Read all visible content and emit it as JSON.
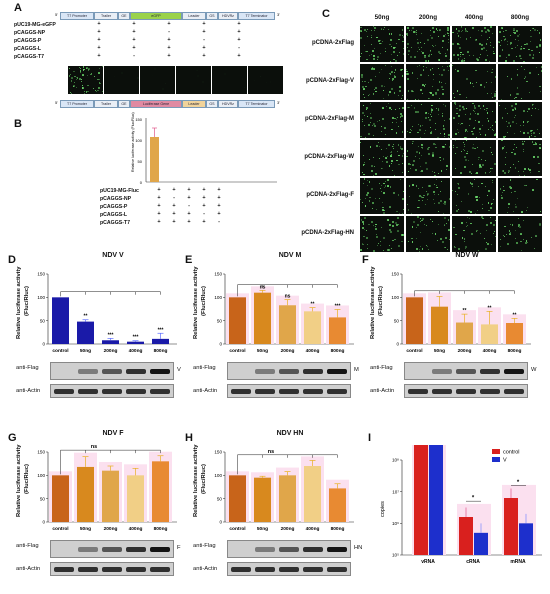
{
  "panels": {
    "A": "A",
    "B": "B",
    "C": "C",
    "D": "D",
    "E": "E",
    "F": "F",
    "G": "G",
    "H": "H",
    "I": "I"
  },
  "panelA": {
    "rows": [
      "pUC19-MG-eGFP",
      "pCAGGS-NP",
      "pCAGGS-P",
      "pCAGGS-L",
      "pCAGGS-T7"
    ],
    "signs": [
      [
        "+",
        "+",
        "+",
        "+",
        "+"
      ],
      [
        "+",
        "+",
        "-",
        "+",
        "+"
      ],
      [
        "+",
        "+",
        "+",
        "-",
        "+"
      ],
      [
        "+",
        "+",
        "+",
        "+",
        "-"
      ],
      [
        "+",
        "-",
        "+",
        "+",
        "+"
      ]
    ],
    "construct1": [
      "T7 Promoter",
      "Trailer",
      "GE",
      "eGFP",
      "Leader",
      "GS",
      "HDVRz",
      "T7 Terminator"
    ],
    "construct2": [
      "T7 Promoter",
      "Trailer",
      "GE",
      "Luciferase Gene",
      "Leader",
      "GS",
      "HDVRz",
      "T7 Terminator"
    ],
    "prime5": "5'",
    "prime3": "3'"
  },
  "panelB": {
    "rows": [
      "pUC19-MG-Fluc",
      "pCAGGS-NP",
      "pCAGGS-P",
      "pCAGGS-L",
      "pCAGGS-T7"
    ],
    "signs": [
      [
        "+",
        "+",
        "+",
        "+",
        "+"
      ],
      [
        "+",
        "-",
        "+",
        "+",
        "+"
      ],
      [
        "+",
        "+",
        "-",
        "+",
        "+"
      ],
      [
        "+",
        "+",
        "+",
        "-",
        "+"
      ],
      [
        "+",
        "+",
        "+",
        "+",
        "-"
      ]
    ],
    "ylabel": "Relative luciferase activity (Fluc/Rluc)",
    "yticks": [
      "0",
      "50",
      "100",
      "150"
    ]
  },
  "panelC": {
    "cols": [
      "50ng",
      "200ng",
      "400ng",
      "800ng"
    ],
    "rows": [
      "pCDNA-2xFlag",
      "pCDNA-2xFlag-V",
      "pCDNA-2xFlag-M",
      "pCDNA-2xFlag-W",
      "pCDNA-2xFlag-F",
      "pCDNA-2xFlag-HN"
    ]
  },
  "common": {
    "ylabel1": "Relative luciferase activity",
    "ylabel2": "(Fluc/Rluc)",
    "xcats": [
      "control",
      "50ng",
      "200ng",
      "400ng",
      "800ng"
    ],
    "antiFlag": "anti-Flag",
    "antiActin": "anti-Actin",
    "yticks": [
      "0",
      "50",
      "100",
      "150"
    ]
  },
  "panelD": {
    "title": "NDV V",
    "band": "V",
    "values": [
      100,
      48,
      8,
      5,
      11
    ],
    "errors": [
      0,
      4,
      4,
      2,
      12
    ],
    "sig": [
      "",
      "**",
      "***",
      "***",
      "***"
    ]
  },
  "panelE": {
    "title": "NDV M",
    "band": "M",
    "values": [
      100,
      110,
      83,
      70,
      57
    ],
    "errors": [
      0,
      5,
      12,
      8,
      17
    ],
    "sig": [
      "",
      "ns",
      "ns",
      "**",
      "***"
    ]
  },
  "panelF": {
    "title": "NDV W",
    "band": "W",
    "values": [
      100,
      80,
      46,
      42,
      45
    ],
    "errors": [
      0,
      22,
      18,
      28,
      10
    ],
    "sig": [
      "",
      "",
      "**",
      "**",
      "**"
    ]
  },
  "panelG": {
    "title": "NDV F",
    "band": "F",
    "values": [
      100,
      118,
      110,
      100,
      130
    ],
    "errors": [
      0,
      22,
      10,
      15,
      12
    ],
    "sig": [
      "ns"
    ]
  },
  "panelH": {
    "title": "NDV HN",
    "band": "HN",
    "values": [
      100,
      95,
      100,
      120,
      72
    ],
    "errors": [
      0,
      3,
      8,
      12,
      10
    ],
    "sig": [
      "ns"
    ]
  },
  "panelI": {
    "ylabel": "copies",
    "legend": [
      "control",
      "V"
    ],
    "categories": [
      "vRNA",
      "cRNA",
      "mRNA"
    ],
    "yticks": [
      "10⁵",
      "10⁶",
      "10⁷",
      "10⁸"
    ],
    "control": [
      10.0,
      6.2,
      6.8
    ],
    "V": [
      10.0,
      5.7,
      6.0
    ],
    "sig": [
      "*",
      "*"
    ]
  },
  "colors": {
    "bar1": "#c8641a",
    "bar2": "#d8891e",
    "bar3": "#e0a64a",
    "bar4": "#f1cf86",
    "bar5": "#e88a32",
    "blue": "#1a1aa8",
    "red": "#d9201e",
    "blueI": "#1d2fcc",
    "pink": "#f7b7d8"
  }
}
